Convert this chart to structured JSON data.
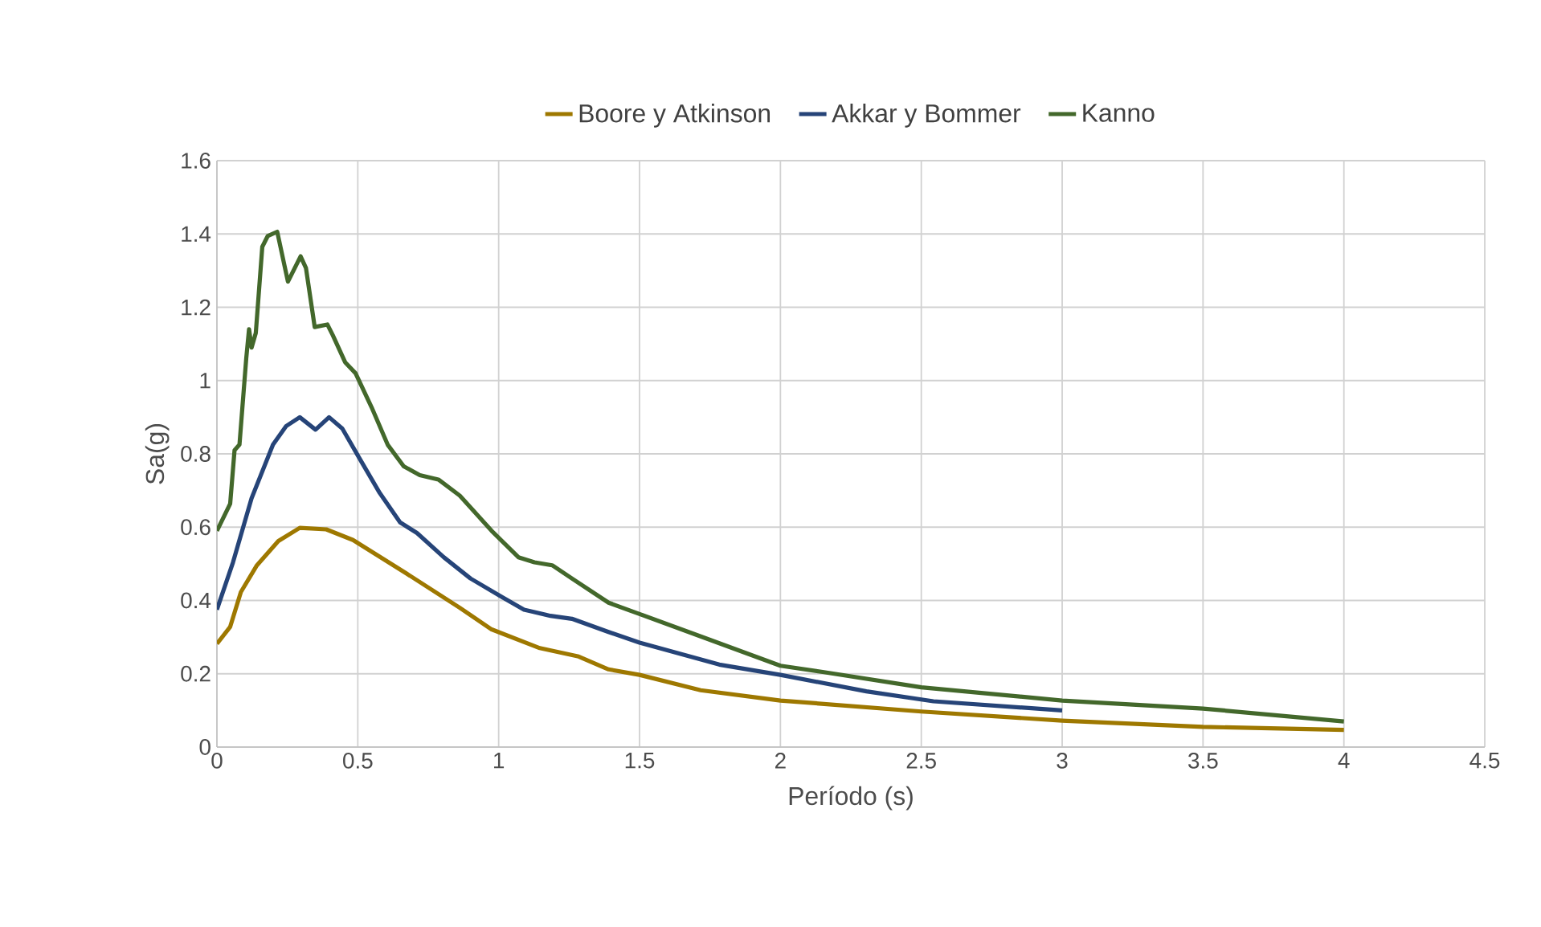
{
  "chart_data": {
    "type": "line",
    "xlabel": "Período (s)",
    "ylabel": "Sa(g)",
    "xlim": [
      0,
      4.5
    ],
    "xticks": [
      0,
      0.5,
      1,
      1.5,
      2,
      2.5,
      3,
      3.5,
      4,
      4.5
    ],
    "ylim": [
      0,
      1.6
    ],
    "yticks": [
      0,
      0.2,
      0.4,
      0.6,
      0.8,
      1,
      1.2,
      1.4,
      1.6
    ],
    "grid": true,
    "legend": "top",
    "marker": "none",
    "line_style": "solid",
    "series": [
      {
        "name": "Boore y Atkinson",
        "color": "#9e7800",
        "x": [
          0,
          0.047,
          0.085,
          0.142,
          0.218,
          0.294,
          0.388,
          0.483,
          0.672,
          0.862,
          0.975,
          1.146,
          1.284,
          1.39,
          1.5,
          1.717,
          2.0,
          2.5,
          3.0,
          3.5,
          4.0
        ],
        "values": [
          0.282,
          0.328,
          0.423,
          0.496,
          0.562,
          0.598,
          0.594,
          0.565,
          0.474,
          0.38,
          0.321,
          0.27,
          0.247,
          0.212,
          0.197,
          0.155,
          0.127,
          0.097,
          0.072,
          0.055,
          0.047
        ]
      },
      {
        "name": "Akkar y Bommer",
        "color": "#264478",
        "x": [
          0,
          0.057,
          0.123,
          0.199,
          0.246,
          0.294,
          0.35,
          0.398,
          0.445,
          0.511,
          0.578,
          0.65,
          0.71,
          0.805,
          0.9,
          1.013,
          1.09,
          1.184,
          1.26,
          1.39,
          1.5,
          1.783,
          2.0,
          2.305,
          2.543,
          3.0
        ],
        "values": [
          0.375,
          0.504,
          0.679,
          0.825,
          0.876,
          0.9,
          0.866,
          0.9,
          0.869,
          0.781,
          0.693,
          0.613,
          0.584,
          0.518,
          0.46,
          0.409,
          0.375,
          0.358,
          0.35,
          0.314,
          0.285,
          0.225,
          0.197,
          0.152,
          0.125,
          0.1
        ]
      },
      {
        "name": "Kanno",
        "color": "#43682b",
        "x": [
          0,
          0.047,
          0.0625,
          0.08,
          0.104,
          0.114,
          0.123,
          0.138,
          0.161,
          0.18,
          0.214,
          0.252,
          0.297,
          0.316,
          0.347,
          0.392,
          0.411,
          0.455,
          0.492,
          0.549,
          0.606,
          0.663,
          0.72,
          0.786,
          0.862,
          0.975,
          1.07,
          1.127,
          1.19,
          1.26,
          1.39,
          1.5,
          1.717,
          2.0,
          2.15,
          2.5,
          3.0,
          3.5,
          4.0
        ],
        "values": [
          0.59,
          0.664,
          0.81,
          0.825,
          1.06,
          1.14,
          1.09,
          1.13,
          1.365,
          1.394,
          1.406,
          1.27,
          1.339,
          1.307,
          1.146,
          1.153,
          1.124,
          1.05,
          1.02,
          0.927,
          0.825,
          0.766,
          0.742,
          0.73,
          0.686,
          0.59,
          0.518,
          0.504,
          0.496,
          0.46,
          0.394,
          0.363,
          0.302,
          0.222,
          0.205,
          0.163,
          0.127,
          0.105,
          0.07
        ]
      }
    ]
  }
}
